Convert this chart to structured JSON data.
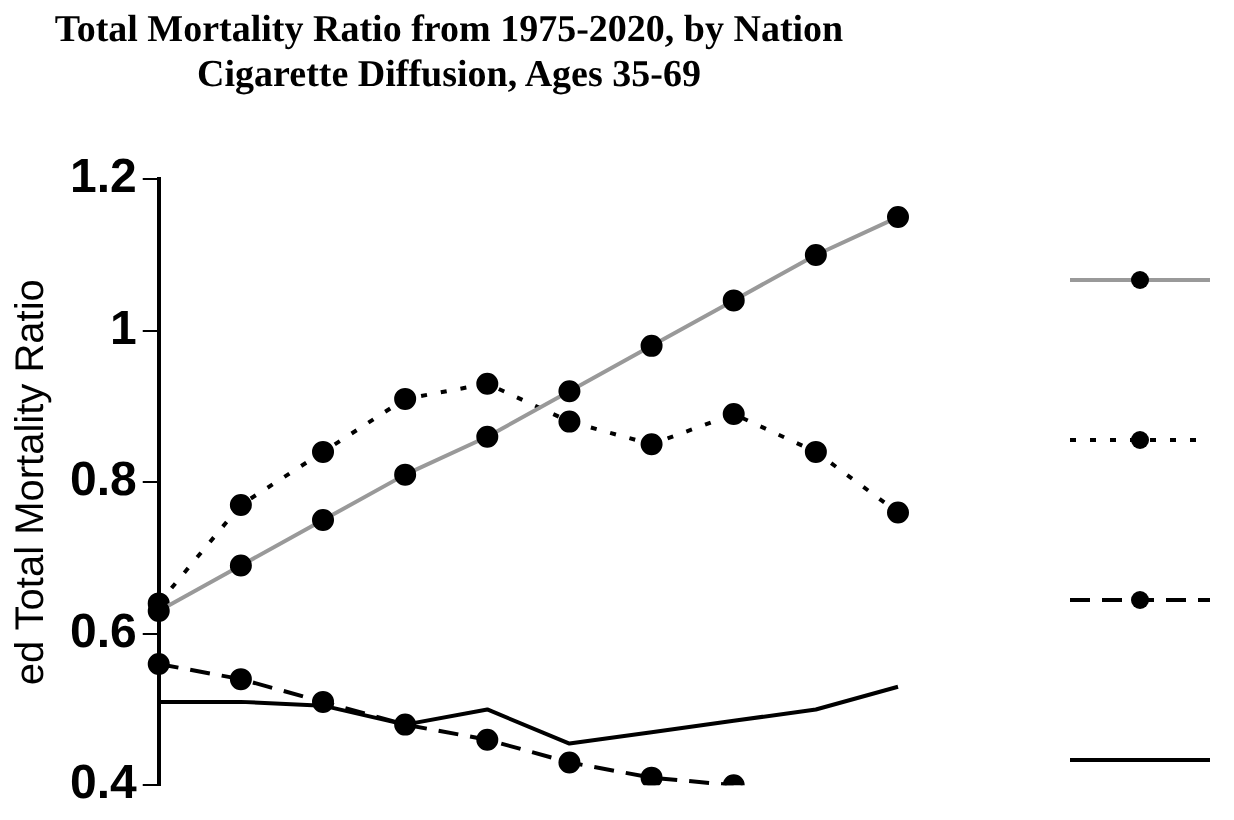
{
  "chart_data": {
    "type": "line",
    "title": [
      "Total Mortality Ratio from 1975-2020, by Nation",
      "Cigarette Diffusion, Ages 35-69"
    ],
    "ylabel": "ed Total Mortality Ratio",
    "categories": [
      null,
      null,
      null,
      null,
      null,
      null,
      null,
      null,
      null,
      null
    ],
    "series": [
      {
        "color": "#999999",
        "marker": "circle",
        "line_style": "solid",
        "values": [
          0.63,
          0.69,
          0.75,
          0.81,
          0.86,
          0.92,
          0.98,
          1.04,
          1.1,
          1.15
        ]
      },
      {
        "color": "#000000",
        "marker": "circle",
        "line_style": "dotted",
        "values": [
          0.64,
          0.77,
          0.84,
          0.91,
          0.93,
          0.88,
          0.85,
          0.89,
          0.84,
          0.76
        ]
      },
      {
        "color": "#000000",
        "marker": "circle",
        "line_style": "dashed",
        "values": [
          0.56,
          0.54,
          0.51,
          0.48,
          0.46,
          0.43,
          0.41,
          0.4,
          null,
          null
        ]
      },
      {
        "color": "#000000",
        "marker": "none",
        "line_style": "solid",
        "values": [
          0.51,
          0.51,
          0.505,
          0.48,
          0.5,
          0.455,
          0.47,
          0.485,
          0.5,
          0.53
        ]
      }
    ],
    "ylim": [
      0.4,
      1.2
    ],
    "yticks": [
      0.4,
      0.6,
      0.8,
      1,
      1.2
    ],
    "tick_labels": "y"
  }
}
